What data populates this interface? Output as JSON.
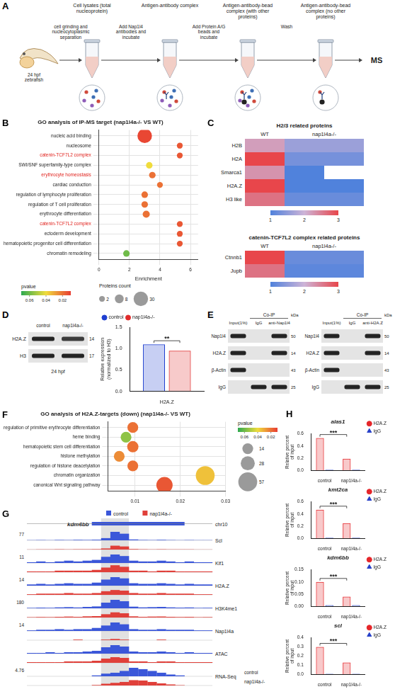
{
  "panel_letters": [
    "A",
    "B",
    "C",
    "D",
    "E",
    "F",
    "G",
    "H"
  ],
  "schematic": {
    "source_label": "24 hpf zebrafish",
    "top_labels": [
      "Cell lysates (total nucleoprotein)",
      "Antigen-antibody complex",
      "Antigen-antibody-bead complex (with other proteins)",
      "Antigen-antibody-bead complex (no other proteins)"
    ],
    "arrow_labels": [
      "cell grinding and nucleocytoplasmic separation",
      "Add Nap1l4 antibodies and incubate",
      "Add Protein A/G beads and incubate",
      "Wash"
    ],
    "end_label": "MS"
  },
  "chart_data": [
    {
      "type": "bubble",
      "title": "GO analysis of IP-MS target (nap1l4a-/- VS WT)",
      "x_label": "Enrichment",
      "categories": [
        "nucleic acid binding",
        "nucleosome",
        "catenin-TCF7L2 complex",
        "SWI/SNF superfamily-type complex",
        "erythrocyte homeostasis",
        "cardiac conduction",
        "regulation of lymphocyte proliferation",
        "regulation of T cell proliferation",
        "erythrocyte differentiation",
        "catenin-TCF7L2 complex",
        "ectoderm development",
        "hematopoietic progenitor cell differentiation",
        "chromatin remodeling"
      ],
      "values": [
        3.0,
        5.3,
        5.3,
        3.3,
        3.5,
        4.0,
        3.0,
        3.0,
        3.1,
        5.3,
        5.3,
        5.3,
        1.8
      ],
      "pvalue": [
        0.012,
        0.015,
        0.015,
        0.04,
        0.02,
        0.02,
        0.02,
        0.02,
        0.02,
        0.015,
        0.015,
        0.015,
        0.06
      ],
      "count": [
        30,
        2,
        2,
        3,
        3,
        2,
        3,
        3,
        4,
        2,
        2,
        2,
        3
      ],
      "xlim": [
        0,
        6.5
      ],
      "xticks": [
        0,
        2,
        4,
        6
      ],
      "grid": true,
      "highlight": [
        "catenin-TCF7L2 complex",
        "erythrocyte homeostasis"
      ],
      "pvalue_colorbar": {
        "title": "pvalue",
        "lim": [
          0.07,
          0.01
        ],
        "ticks": [
          0.06,
          0.04,
          0.02
        ]
      },
      "count_legend": {
        "title": "Proteins count",
        "values": [
          2,
          8,
          30
        ]
      }
    },
    {
      "type": "bar",
      "categories": [
        "H2A.Z"
      ],
      "series": [
        {
          "name": "control",
          "color": "#1f3fd1",
          "marker": "circle",
          "values": [
            1.1
          ]
        },
        {
          "name": "nap1l4a-/-",
          "color": "#e02b2b",
          "marker": "circle",
          "values": [
            0.95
          ]
        }
      ],
      "y_label": "Relative expression (normalized to H3)",
      "ylim": [
        0,
        1.5
      ],
      "yticks": [
        {
          "value": 0,
          "label": "0.0"
        },
        0.5,
        {
          "value": 1,
          "label": "1.0"
        },
        1.5
      ],
      "legend": "top",
      "significance": "**"
    },
    {
      "type": "bubble",
      "title": "GO analysis of H2A.Z-targets (down) (nap1l4a-/- VS WT)",
      "categories": [
        "regulation of primitive erythrocyte differentiation",
        "heme binding",
        "hematopoietic stem cell differentiation",
        "histone methylation",
        "regulation of histone deacetylation",
        "chromatin organization",
        "canonical Wnt signaling pathway"
      ],
      "values": [
        0.0095,
        0.008,
        0.0095,
        0.0065,
        0.0095,
        0.0255,
        0.0165
      ],
      "pvalue": [
        0.02,
        0.055,
        0.02,
        0.025,
        0.02,
        0.035,
        0.015
      ],
      "count": [
        14,
        14,
        16,
        14,
        14,
        57,
        40
      ],
      "xlim": [
        0.004,
        0.03
      ],
      "xticks": [
        0.01,
        0.02,
        0.03
      ],
      "grid": true,
      "pvalue_colorbar": {
        "title": "pvalue",
        "lim": [
          0.07,
          0.01
        ],
        "ticks": [
          0.06,
          0.04,
          0.02
        ]
      },
      "count_legend": {
        "values": [
          14,
          28,
          57
        ]
      }
    },
    {
      "type": "bar",
      "title": "alas1",
      "categories": [
        "control",
        "nap1l4a-/-"
      ],
      "series": [
        {
          "name": "H2A.Z",
          "color": "#e5262a",
          "marker": "circle",
          "values": [
            0.53,
            0.19
          ]
        },
        {
          "name": "IgG",
          "color": "#2741c9",
          "marker": "triangle",
          "values": [
            0.01,
            0.01
          ]
        }
      ],
      "y_label": "Relative percent of input",
      "ylim": [
        0,
        0.6
      ],
      "yticks": [
        {
          "value": 0,
          "label": "0.0"
        },
        0.2,
        0.4,
        0.6
      ],
      "legend": "right",
      "significance": "***"
    },
    {
      "type": "bar",
      "title": "kmt2ca",
      "categories": [
        "control",
        "nap1l4a-/-"
      ],
      "series": [
        {
          "name": "H2A.Z",
          "color": "#e5262a",
          "marker": "circle",
          "values": [
            0.47,
            0.25
          ]
        },
        {
          "name": "IgG",
          "color": "#2741c9",
          "marker": "triangle",
          "values": [
            0.01,
            0.01
          ]
        }
      ],
      "y_label": "Relative percent of input",
      "ylim": [
        0,
        0.6
      ],
      "yticks": [
        {
          "value": 0,
          "label": "0.0"
        },
        0.2,
        0.4,
        0.6
      ],
      "legend": "right",
      "significance": "***"
    },
    {
      "type": "bar",
      "title": "kdm6bb",
      "categories": [
        "control",
        "nap1l4a-/-"
      ],
      "series": [
        {
          "name": "H2A.Z",
          "color": "#e5262a",
          "marker": "circle",
          "values": [
            0.1,
            0.04
          ]
        },
        {
          "name": "IgG",
          "color": "#2741c9",
          "marker": "triangle",
          "values": [
            0.005,
            0.005
          ]
        }
      ],
      "y_label": "Relative percent of input",
      "ylim": [
        0,
        0.15
      ],
      "yticks": [
        {
          "value": 0,
          "label": "0.00"
        },
        0.05,
        {
          "value": 0.1,
          "label": "0.10"
        },
        0.15
      ],
      "legend": "right",
      "significance": "***"
    },
    {
      "type": "bar",
      "title": "scl",
      "categories": [
        "control",
        "nap1l4a-/-"
      ],
      "series": [
        {
          "name": "H2A.Z",
          "color": "#e5262a",
          "marker": "circle",
          "values": [
            0.3,
            0.13
          ]
        },
        {
          "name": "IgG",
          "color": "#2741c9",
          "marker": "triangle",
          "values": [
            0.005,
            0.005
          ]
        }
      ],
      "y_label": "Relative percent of input",
      "ylim": [
        0,
        0.4
      ],
      "yticks": [
        {
          "value": 0,
          "label": "0.0"
        },
        0.1,
        0.2,
        0.3,
        0.4
      ],
      "legend": "right",
      "significance": "***"
    }
  ],
  "heatmaps": {
    "color_lim": [
      1,
      3
    ],
    "color_ticks": [
      1,
      2,
      3
    ],
    "maps": [
      {
        "title": "H2/3 related proteins",
        "groups": [
          {
            "label": "WT",
            "span": 1
          },
          {
            "label": "nap1l4a-/-",
            "span": 2
          }
        ],
        "rows": [
          "H2B",
          "H2A",
          "Smarca1",
          "H2A.Z",
          "H3 like"
        ],
        "values": [
          [
            2.2,
            1.6,
            1.6
          ],
          [
            3,
            1.3,
            1.3
          ],
          [
            2.3,
            1,
            null
          ],
          [
            3,
            1,
            1
          ],
          [
            2.6,
            1.2,
            1.2
          ]
        ]
      },
      {
        "title": "catenin-TCF7L2 complex related proteins",
        "groups": [
          {
            "label": "WT",
            "span": 1
          },
          {
            "label": "nap1l4a-/-",
            "span": 2
          }
        ],
        "rows": [
          "Ctnnb1",
          "Jupb"
        ],
        "values": [
          [
            3,
            1.2,
            1.2
          ],
          [
            2.6,
            1.1,
            1.1
          ]
        ]
      }
    ]
  },
  "blot_D": {
    "lanes": [
      "control",
      "nap1l4a-/-"
    ],
    "rows": [
      {
        "label": "H2A.Z",
        "kda": 14,
        "bands": [
          1,
          0.85
        ]
      },
      {
        "label": "H3",
        "kda": 17,
        "bands": [
          1,
          1
        ]
      }
    ],
    "caption": "24 hpf"
  },
  "blots_E": {
    "unit": "kDa",
    "blots": [
      {
        "header": "Co-IP",
        "lanes": [
          "Input(1%)",
          "IgG",
          "anti-Nap1l4"
        ],
        "rows": [
          {
            "label": "Nap1l4",
            "kda": 50,
            "bands": [
              1,
              0,
              1
            ]
          },
          {
            "label": "H2A.Z",
            "kda": 14,
            "bands": [
              1,
              0,
              1
            ]
          },
          {
            "label": "β-Actin",
            "kda": 43,
            "bands": [
              1,
              0,
              0
            ]
          },
          {
            "label": "IgG",
            "kda": 25,
            "bands": [
              0,
              1,
              1
            ]
          }
        ]
      },
      {
        "header": "Co-IP",
        "lanes": [
          "Input(1%)",
          "IgG",
          "anti-H2A.Z"
        ],
        "rows": [
          {
            "label": "Nap1l4",
            "kda": 50,
            "bands": [
              1,
              0,
              1
            ]
          },
          {
            "label": "H2A.Z",
            "kda": 14,
            "bands": [
              1,
              0,
              1
            ]
          },
          {
            "label": "β-Actin",
            "kda": 43,
            "bands": [
              1,
              0,
              0
            ]
          },
          {
            "label": "IgG",
            "kda": 25,
            "bands": [
              0,
              1,
              1
            ]
          }
        ]
      }
    ]
  },
  "tracks": {
    "gene": "kdm6bb",
    "chromosome": "chr10",
    "gene_span": [
      7,
      16
    ],
    "highlight_bins": [
      8,
      10
    ],
    "legend": [
      {
        "name": "control",
        "color": "#3b57d9"
      },
      {
        "name": "nap1l4a-/-",
        "color": "#e0403a"
      }
    ],
    "tracks": [
      {
        "name": "Scl",
        "scale": 77,
        "control": [
          2,
          3,
          2,
          4,
          3,
          5,
          4,
          6,
          20,
          77,
          60,
          8,
          4,
          3,
          5,
          3,
          2,
          3,
          2,
          2
        ],
        "mutant": [
          1,
          2,
          2,
          3,
          2,
          3,
          3,
          4,
          10,
          35,
          28,
          5,
          3,
          2,
          3,
          2,
          2,
          2,
          1,
          1
        ]
      },
      {
        "name": "Klf1",
        "scale": 11,
        "control": [
          1,
          2,
          1,
          2,
          3,
          2,
          3,
          4,
          8,
          11,
          9,
          3,
          2,
          2,
          3,
          2,
          1,
          2,
          1,
          1
        ],
        "mutant": [
          1,
          1,
          1,
          2,
          2,
          2,
          2,
          3,
          6,
          9,
          7,
          2,
          2,
          1,
          2,
          2,
          1,
          1,
          1,
          1
        ]
      },
      {
        "name": "H2A.Z",
        "scale": 14,
        "control": [
          2,
          3,
          2,
          3,
          4,
          3,
          3,
          5,
          10,
          14,
          12,
          4,
          3,
          3,
          4,
          3,
          2,
          3,
          2,
          2
        ],
        "mutant": [
          1,
          2,
          2,
          2,
          3,
          2,
          2,
          3,
          6,
          8,
          7,
          3,
          2,
          2,
          3,
          2,
          2,
          2,
          1,
          1
        ]
      },
      {
        "name": "H3K4me1",
        "scale": 180,
        "control": [
          10,
          15,
          12,
          20,
          25,
          18,
          30,
          40,
          120,
          180,
          150,
          35,
          20,
          25,
          30,
          20,
          15,
          18,
          10,
          12
        ],
        "mutant": [
          8,
          12,
          10,
          15,
          20,
          15,
          25,
          30,
          70,
          110,
          90,
          25,
          15,
          20,
          22,
          15,
          12,
          14,
          8,
          10
        ]
      },
      {
        "name": "Nap1l4a",
        "scale": 14,
        "control": [
          1,
          2,
          2,
          3,
          2,
          3,
          3,
          5,
          9,
          14,
          11,
          3,
          2,
          2,
          3,
          2,
          2,
          2,
          1,
          1
        ],
        "mutant": [
          0,
          0,
          0,
          0,
          0,
          1,
          0,
          0,
          1,
          2,
          1,
          0,
          0,
          0,
          1,
          0,
          0,
          0,
          0,
          0
        ]
      },
      {
        "name": "ATAC",
        "scale": null,
        "control": [
          1,
          1,
          2,
          1,
          2,
          2,
          3,
          4,
          9,
          12,
          10,
          3,
          2,
          2,
          3,
          2,
          1,
          2,
          1,
          1
        ],
        "mutant": [
          1,
          1,
          1,
          1,
          2,
          2,
          2,
          3,
          6,
          8,
          7,
          2,
          2,
          1,
          2,
          2,
          1,
          1,
          1,
          1
        ]
      },
      {
        "name": "RNA-Seq",
        "scale": 4.76,
        "rows": [
          "control",
          "nap1l4a-/-"
        ],
        "control": [
          0,
          0,
          0,
          0,
          0,
          0,
          0,
          0.5,
          1.5,
          2,
          3,
          4.76,
          4,
          3,
          2,
          1,
          0.5,
          0,
          0,
          0
        ],
        "mutant": [
          0,
          0,
          0,
          0,
          0,
          0,
          0,
          0.3,
          1,
          1.5,
          2,
          3,
          2.8,
          2,
          1.2,
          0.6,
          0.2,
          0,
          0,
          0
        ]
      }
    ]
  }
}
